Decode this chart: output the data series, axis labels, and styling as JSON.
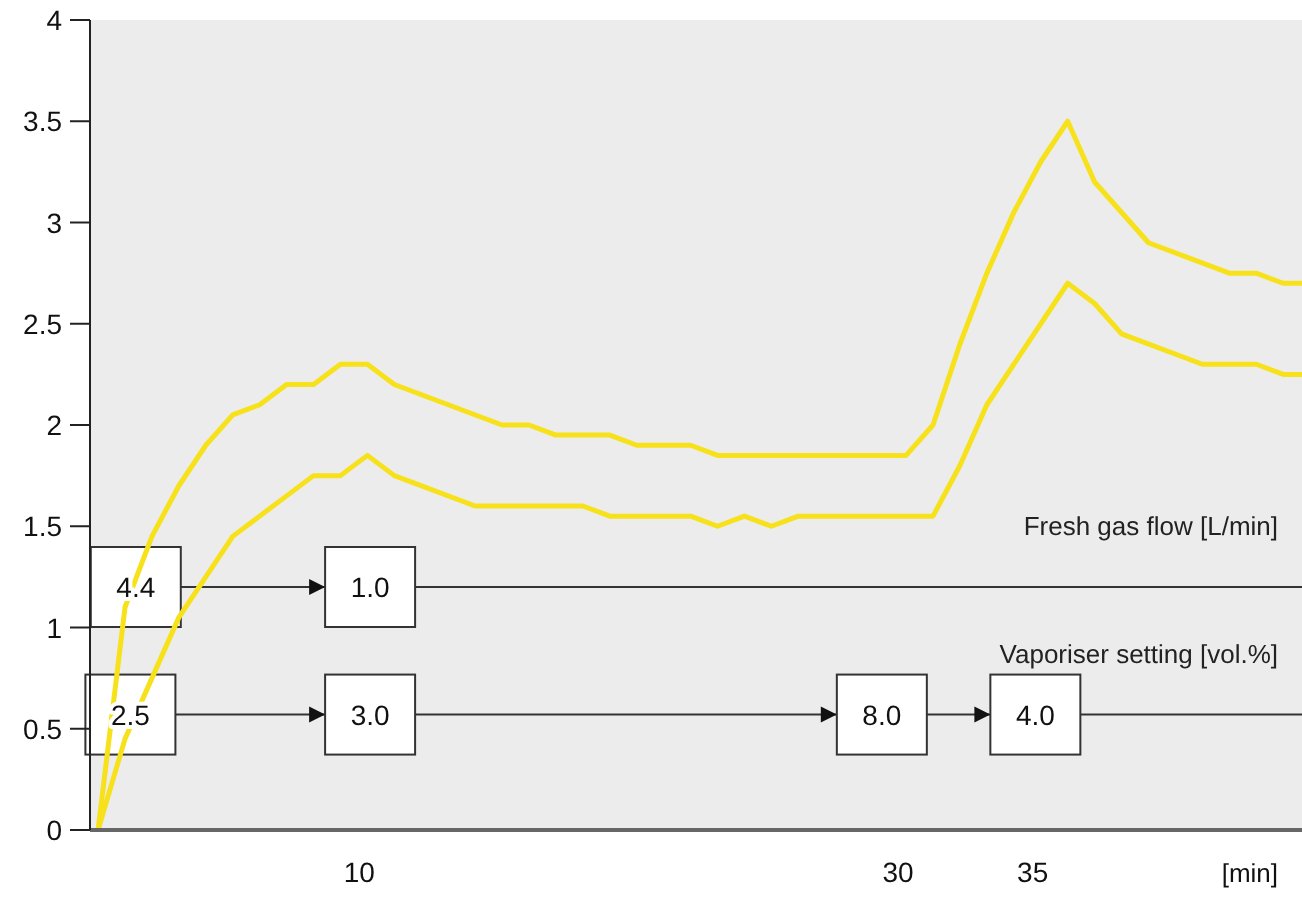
{
  "chart_data": {
    "type": "line",
    "xlabel": "[min]",
    "xlim": [
      0,
      45
    ],
    "ylim": [
      0,
      4
    ],
    "xticks": [
      10,
      30,
      35
    ],
    "yticks": [
      0,
      0.5,
      1,
      1.5,
      2,
      2.5,
      3,
      3.5,
      4
    ],
    "grid": false,
    "marker": "none",
    "line_style": "solid",
    "series": [
      {
        "color": "#f7e11a",
        "x": [
          0.3,
          1.3,
          2.3,
          3.3,
          4.3,
          5.3,
          6.3,
          7.3,
          8.3,
          9.3,
          10.3,
          11.3,
          15.3,
          16.3,
          17.3,
          19.3,
          20.3,
          22.3,
          23.3,
          30.3,
          31.3,
          32.3,
          33.3,
          34.3,
          35.3,
          36.3,
          37.3,
          39.3,
          42.3,
          43.3,
          44.3,
          45
        ],
        "values": [
          0,
          1.1,
          1.45,
          1.7,
          1.9,
          2.05,
          2.1,
          2.2,
          2.2,
          2.3,
          2.3,
          2.2,
          2.0,
          2.0,
          1.95,
          1.95,
          1.9,
          1.9,
          1.85,
          1.85,
          2.0,
          2.4,
          2.75,
          3.05,
          3.3,
          3.5,
          3.2,
          2.9,
          2.75,
          2.75,
          2.7,
          2.7
        ]
      },
      {
        "color": "#f7e11a",
        "x": [
          0.3,
          1.3,
          2.3,
          3.3,
          4.3,
          5.3,
          6.3,
          7.3,
          8.3,
          9.3,
          10.3,
          11.3,
          14.3,
          18.3,
          19.3,
          22.3,
          23.3,
          24.3,
          25.3,
          26.3,
          31.3,
          32.3,
          33.3,
          36.3,
          37.3,
          38.3,
          41.3,
          43.3,
          44.3,
          45
        ],
        "values": [
          0,
          0.45,
          0.75,
          1.05,
          1.25,
          1.45,
          1.55,
          1.65,
          1.75,
          1.75,
          1.85,
          1.75,
          1.6,
          1.6,
          1.55,
          1.55,
          1.5,
          1.55,
          1.5,
          1.55,
          1.55,
          1.8,
          2.1,
          2.7,
          2.6,
          2.45,
          2.3,
          2.3,
          2.25,
          2.25
        ]
      }
    ],
    "ref_lines": [
      {
        "axis": "y",
        "value": 1.2,
        "label": "Fresh gas flow [L/min]",
        "color": "#333333"
      },
      {
        "axis": "y",
        "value": 0.57,
        "label": "Vaporiser setting [vol.%]",
        "color": "#333333"
      }
    ],
    "annotations": [
      {
        "text": "4.4",
        "x": 1.7,
        "y": 1.2
      },
      {
        "text": "1.0",
        "x": 10.4,
        "y": 1.2
      },
      {
        "text": "2.5",
        "x": 1.5,
        "y": 0.57
      },
      {
        "text": "3.0",
        "x": 10.4,
        "y": 0.57
      },
      {
        "text": "8.0",
        "x": 29.4,
        "y": 0.57
      },
      {
        "text": "4.0",
        "x": 35.1,
        "y": 0.57
      }
    ]
  }
}
